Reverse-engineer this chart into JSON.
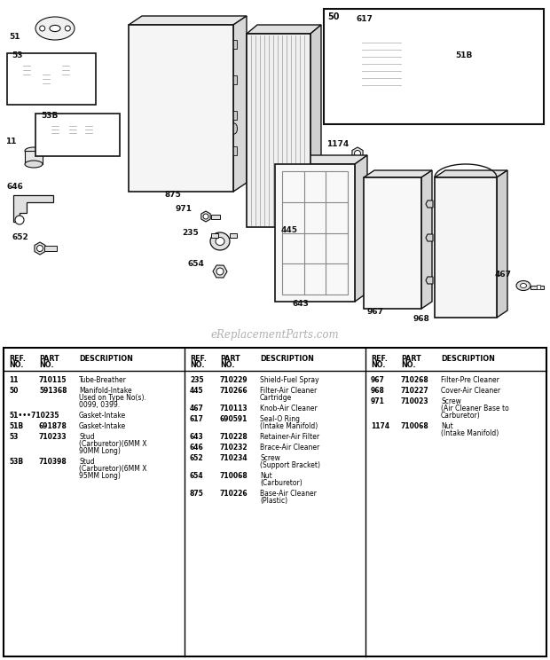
{
  "bg_color": "#ffffff",
  "watermark": "eReplacementParts.com",
  "diagram": {
    "parts_label_color": "#111111",
    "line_color": "#111111"
  },
  "table": {
    "col1_rows": [
      [
        "11",
        "710115",
        "Tube-Breather"
      ],
      [
        "50",
        "591368",
        "Manifold-Intake\nUsed on Type No(s).\n0099, 0399."
      ],
      [
        "51•••710235",
        "",
        "Gasket-Intake"
      ],
      [
        "51B",
        "691878",
        "Gasket-Intake"
      ],
      [
        "53",
        "710233",
        "Stud\n(Carburetor)(6MM X\n90MM Long)"
      ],
      [
        "53B",
        "710398",
        "Stud\n(Carburetor)(6MM X\n95MM Long)"
      ]
    ],
    "col2_rows": [
      [
        "235",
        "710229",
        "Shield-Fuel Spray"
      ],
      [
        "445",
        "710266",
        "Filter-Air Cleaner\nCartridge"
      ],
      [
        "467",
        "710113",
        "Knob-Air Cleaner"
      ],
      [
        "617",
        "690591",
        "Seal-O Ring\n(Intake Manifold)"
      ],
      [
        "643",
        "710228",
        "Retainer-Air Filter"
      ],
      [
        "646",
        "710232",
        "Brace-Air Cleaner"
      ],
      [
        "652",
        "710234",
        "Screw\n(Support Bracket)"
      ],
      [
        "654",
        "710068",
        "Nut\n(Carburetor)"
      ],
      [
        "875",
        "710226",
        "Base-Air Cleaner\n(Plastic)"
      ]
    ],
    "col3_rows": [
      [
        "967",
        "710268",
        "Filter-Pre Cleaner"
      ],
      [
        "968",
        "710227",
        "Cover-Air Cleaner"
      ],
      [
        "971",
        "710023",
        "Screw\n(Air Cleaner Base to\nCarburetor)"
      ],
      [
        "1174",
        "710068",
        "Nut\n(Intake Manifold)"
      ]
    ]
  }
}
